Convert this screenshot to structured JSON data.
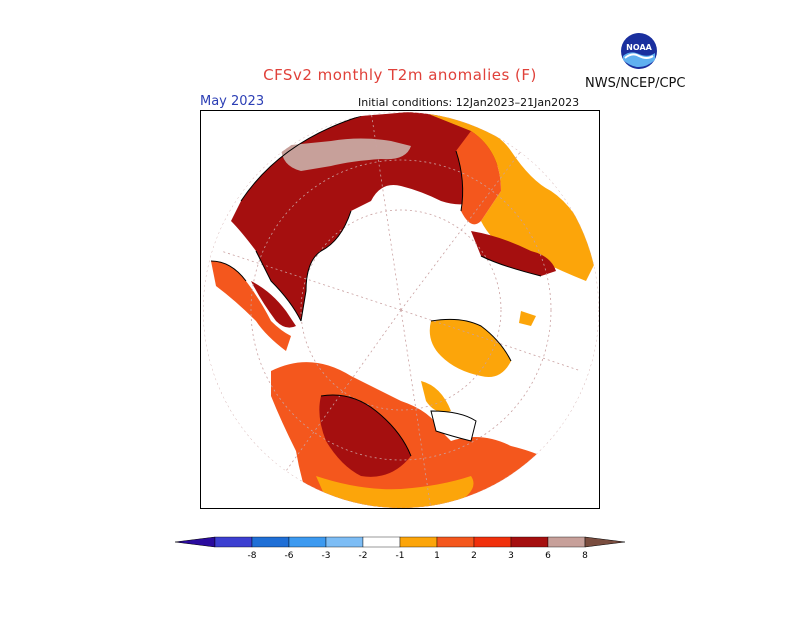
{
  "header": {
    "title": "CFSv2 monthly T2m anomalies (F)",
    "agency": "NWS/NCEP/CPC",
    "logo_text": "NOAA",
    "month": "May 2023",
    "initial_conditions": "Initial conditions: 12Jan2023–21Jan2023"
  },
  "colors": {
    "title": "#e0413a",
    "month": "#2c3fb5",
    "ocean": "#ffffff",
    "anomaly_1_2": "#fca50a",
    "anomaly_2_3": "#f4571d",
    "anomaly_3_6": "#a50f0f",
    "anomaly_6_8": "#c7a09a"
  },
  "legend": {
    "ticks": [
      "-8",
      "-6",
      "-3",
      "-2",
      "-1",
      "1",
      "2",
      "3",
      "6",
      "8"
    ],
    "colors": [
      "#2a0b9e",
      "#3c3fd1",
      "#1f6fd6",
      "#3d9af0",
      "#7dbdf5",
      "#ffffff",
      "#fca50a",
      "#f4571d",
      "#f0300c",
      "#a50f0f",
      "#c7a09a",
      "#7a4d3f"
    ]
  }
}
